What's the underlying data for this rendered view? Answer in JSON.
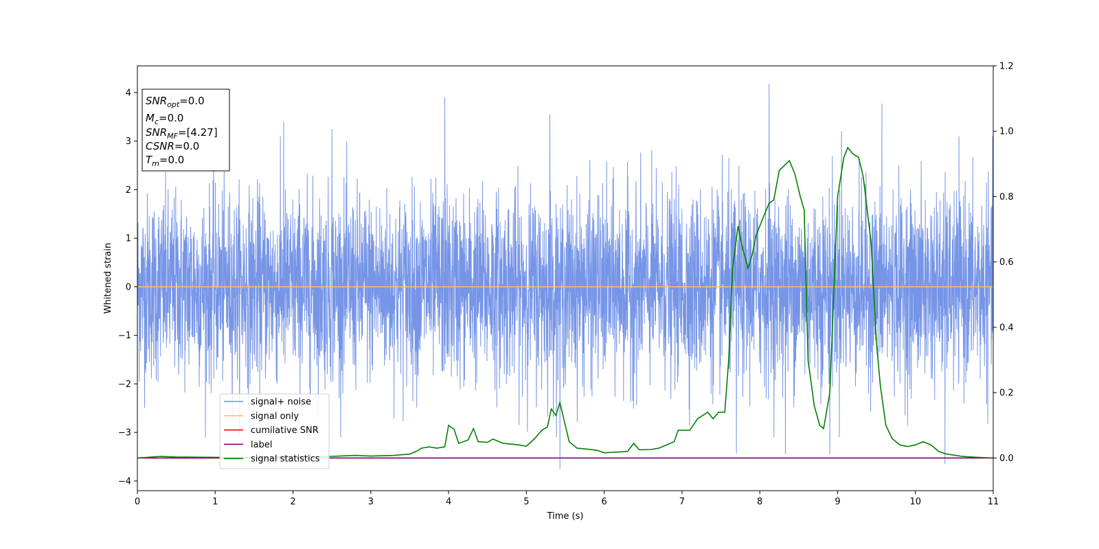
{
  "chart_data": {
    "type": "line",
    "title": "",
    "xlabel": "Time (s)",
    "ylabel": "Whitened strain",
    "xlim": [
      0,
      11
    ],
    "ylim": [
      -4.2,
      4.55
    ],
    "y2lim": [
      -0.1,
      1.2
    ],
    "xticks": [
      "0",
      "1",
      "2",
      "3",
      "4",
      "5",
      "6",
      "7",
      "8",
      "9",
      "10",
      "11"
    ],
    "yticks": [
      "−4",
      "−3",
      "−2",
      "−1",
      "0",
      "1",
      "2",
      "3",
      "4"
    ],
    "y2ticks": [
      "0.0",
      "0.2",
      "0.4",
      "0.6",
      "0.8",
      "1.0",
      "1.2"
    ],
    "grid": false,
    "legend_position": "lower-left",
    "info_box": {
      "lines": [
        {
          "sym": "SNR",
          "sub": "opt",
          "text": "=0.0"
        },
        {
          "sym": "M",
          "sub": "c",
          "text": "=0.0"
        },
        {
          "sym": "SNR",
          "sub": "MF",
          "text": "=[4.27]"
        },
        {
          "sym": "CSNR",
          "sub": "",
          "text": "=0.0"
        },
        {
          "sym": "T",
          "sub": "m",
          "text": "=0.0"
        }
      ]
    },
    "series": [
      {
        "name": "signal+ noise",
        "color": "#6f8fe6",
        "axis": "left",
        "description_values": "noise",
        "noise_std": 0.95,
        "x_range": [
          0,
          11
        ],
        "spikes": [
          [
            3.95,
            3.9
          ],
          [
            5.3,
            3.55
          ],
          [
            1.88,
            3.4
          ],
          [
            8.12,
            4.18
          ],
          [
            9.57,
            3.77
          ],
          [
            5.43,
            -3.75
          ],
          [
            7.7,
            -3.43
          ],
          [
            8.33,
            -3.45
          ],
          [
            8.9,
            -3.45
          ],
          [
            10.38,
            -3.65
          ],
          [
            2.5,
            3.25
          ],
          [
            9.05,
            3.2
          ]
        ]
      },
      {
        "name": "signal only",
        "color": "#ffbf5f",
        "axis": "left",
        "x": [
          0,
          11
        ],
        "y": [
          0,
          0
        ]
      },
      {
        "name": "cumilative SNR",
        "color": "#ff0000",
        "axis": "right",
        "x": [
          0,
          11
        ],
        "y": [
          0,
          0
        ]
      },
      {
        "name": "label",
        "color": "#800080",
        "axis": "right",
        "x": [
          0,
          11
        ],
        "y": [
          0,
          0
        ]
      },
      {
        "name": "signal statistics",
        "color": "#008000",
        "axis": "right",
        "x": [
          0,
          0.3,
          0.5,
          1.0,
          1.5,
          2.0,
          2.5,
          2.8,
          3.0,
          3.3,
          3.5,
          3.6,
          3.65,
          3.75,
          3.85,
          3.95,
          4.0,
          4.07,
          4.13,
          4.25,
          4.32,
          4.38,
          4.5,
          4.57,
          4.7,
          4.9,
          5.0,
          5.1,
          5.2,
          5.27,
          5.32,
          5.38,
          5.43,
          5.48,
          5.55,
          5.65,
          5.75,
          5.9,
          6.0,
          6.15,
          6.3,
          6.38,
          6.45,
          6.6,
          6.7,
          6.8,
          6.9,
          6.95,
          7.1,
          7.2,
          7.33,
          7.4,
          7.47,
          7.55,
          7.6,
          7.65,
          7.72,
          7.78,
          7.85,
          7.9,
          7.95,
          8.05,
          8.12,
          8.18,
          8.25,
          8.38,
          8.45,
          8.52,
          8.57,
          8.62,
          8.7,
          8.77,
          8.82,
          8.9,
          9.0,
          9.08,
          9.13,
          9.2,
          9.27,
          9.33,
          9.43,
          9.5,
          9.55,
          9.62,
          9.7,
          9.8,
          9.9,
          10.0,
          10.1,
          10.2,
          10.3,
          10.4,
          10.6,
          10.8,
          11.0
        ],
        "y": [
          0.0,
          0.005,
          0.003,
          0.002,
          0.002,
          0.004,
          0.005,
          0.008,
          0.006,
          0.008,
          0.012,
          0.022,
          0.03,
          0.034,
          0.03,
          0.034,
          0.1,
          0.088,
          0.045,
          0.055,
          0.09,
          0.05,
          0.048,
          0.058,
          0.045,
          0.04,
          0.036,
          0.058,
          0.085,
          0.095,
          0.15,
          0.13,
          0.17,
          0.12,
          0.05,
          0.03,
          0.028,
          0.024,
          0.016,
          0.018,
          0.02,
          0.045,
          0.025,
          0.026,
          0.03,
          0.04,
          0.05,
          0.085,
          0.085,
          0.12,
          0.14,
          0.12,
          0.14,
          0.14,
          0.3,
          0.58,
          0.71,
          0.64,
          0.58,
          0.62,
          0.68,
          0.74,
          0.78,
          0.79,
          0.88,
          0.91,
          0.87,
          0.8,
          0.76,
          0.3,
          0.16,
          0.1,
          0.09,
          0.2,
          0.8,
          0.92,
          0.95,
          0.93,
          0.92,
          0.86,
          0.66,
          0.35,
          0.22,
          0.1,
          0.06,
          0.04,
          0.035,
          0.04,
          0.05,
          0.04,
          0.02,
          0.012,
          0.005,
          0.002,
          0.0
        ]
      }
    ]
  }
}
